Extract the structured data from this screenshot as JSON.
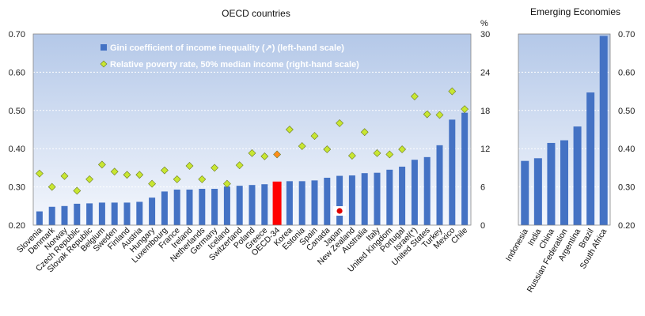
{
  "chart_data": [
    {
      "type": "bar",
      "title": "OECD countries",
      "right_axis_unit": "%",
      "categories": [
        "Slovenia",
        "Denmark",
        "Norway",
        "Czech Republic",
        "Slovak Republic",
        "Belgium",
        "Sweden",
        "Finland",
        "Austria",
        "Hungary",
        "Luxembourg",
        "France",
        "Ireland",
        "Netherlands",
        "Germany",
        "Iceland",
        "Switzerland",
        "Poland",
        "Greece",
        "OECD-34",
        "Korea",
        "Estonia",
        "Spain",
        "Canada",
        "Japan",
        "New Zealand",
        "Australia",
        "Italy",
        "United Kingdom",
        "Portugal",
        "Israel(*)",
        "United States",
        "Turkey",
        "Mexico",
        "Chile"
      ],
      "left_ylim": [
        0.2,
        0.7
      ],
      "left_ticks": [
        "0.20",
        "0.30",
        "0.40",
        "0.50",
        "0.60",
        "0.70"
      ],
      "right_ylim": [
        0,
        30
      ],
      "right_ticks": [
        "0",
        "6",
        "12",
        "18",
        "24",
        "30"
      ],
      "grid": true,
      "legend_position": "top-left",
      "series": [
        {
          "name": "Gini coefficient  of income inequality (↗) (left-hand scale)",
          "kind": "bar",
          "axis": "left",
          "color": "#4472c4",
          "highlight": {
            "OECD-34": "#ff0000"
          },
          "values": [
            0.236,
            0.248,
            0.25,
            0.256,
            0.257,
            0.259,
            0.259,
            0.259,
            0.261,
            0.272,
            0.288,
            0.293,
            0.293,
            0.295,
            0.295,
            0.301,
            0.303,
            0.305,
            0.307,
            0.314,
            0.315,
            0.315,
            0.317,
            0.324,
            0.329,
            0.33,
            0.336,
            0.337,
            0.345,
            0.353,
            0.371,
            0.378,
            0.409,
            0.476,
            0.494
          ]
        },
        {
          "name": "Relative poverty rate, 50% median income (right-hand scale)",
          "kind": "marker",
          "axis": "right",
          "color": "#c8e632",
          "highlight": {
            "OECD-34": "#ff8c1a"
          },
          "values": [
            8.1,
            6.0,
            7.7,
            5.4,
            7.2,
            9.5,
            8.4,
            7.9,
            7.9,
            6.5,
            8.6,
            7.2,
            9.3,
            7.2,
            9.0,
            6.5,
            9.4,
            11.3,
            10.8,
            11.1,
            15.0,
            12.4,
            14.0,
            11.9,
            16.0,
            10.9,
            14.6,
            11.3,
            11.1,
            11.9,
            20.2,
            17.4,
            17.3,
            21.0,
            18.2
          ]
        }
      ],
      "japan_flag_category": "Japan"
    },
    {
      "type": "bar",
      "title": "Emerging Economies",
      "categories": [
        "Indonesia",
        "India",
        "China",
        "Russian Federation",
        "Argentina",
        "Brazil",
        "South Africa"
      ],
      "ylim": [
        0.2,
        0.7
      ],
      "ticks": [
        "0.20",
        "0.30",
        "0.40",
        "0.50",
        "0.60",
        "0.70"
      ],
      "grid": true,
      "color": "#4472c4",
      "values": [
        0.368,
        0.375,
        0.415,
        0.422,
        0.458,
        0.547,
        0.695
      ]
    }
  ]
}
